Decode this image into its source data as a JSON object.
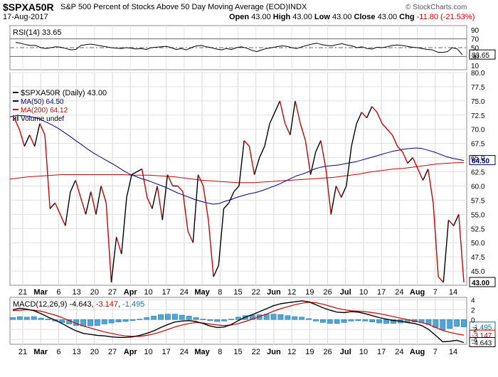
{
  "header": {
    "symbol": "$SPXA50R",
    "description": "S&P 500 Percent of Stocks Above 50 Day Moving Average (EOD)",
    "exchange": "INDX",
    "watermark": "© StockCharts.com",
    "date": "17-Aug-2017",
    "open_label": "Open",
    "open": "43.00",
    "high_label": "High",
    "high": "43.00",
    "low_label": "Low",
    "low": "43.00",
    "close_label": "Close",
    "close": "43.00",
    "chg_label": "Chg",
    "chg": "-11.80 (-21.53%)",
    "chg_color": "#cc0000"
  },
  "chart_data": [
    {
      "type": "line",
      "panel": "rsi",
      "label": "RSI(14)",
      "current": "33.65",
      "ylim": [
        0,
        100
      ],
      "yticks": [
        "90",
        "70",
        "50",
        "30",
        "10"
      ],
      "guide_levels": [
        70,
        50,
        30
      ],
      "values": [
        62,
        60,
        57,
        55,
        55,
        50,
        48,
        50,
        52,
        51,
        48,
        45,
        46,
        55,
        57,
        58,
        56,
        54,
        52,
        50,
        49,
        48,
        50,
        49,
        47,
        48,
        46,
        50,
        51,
        52,
        53,
        50,
        46,
        48,
        45,
        50,
        54,
        55,
        52,
        50,
        47,
        45,
        48,
        46,
        50,
        52,
        49,
        44,
        41,
        45,
        48,
        50,
        52,
        54,
        53,
        50,
        48,
        52,
        55,
        58,
        60,
        57,
        55,
        54,
        57,
        59,
        56,
        54,
        50,
        52,
        48,
        47,
        51,
        50,
        52,
        55,
        56,
        55,
        53,
        51,
        50,
        48,
        46,
        45,
        40,
        39,
        41,
        50,
        47,
        33.65
      ]
    },
    {
      "type": "line",
      "panel": "price",
      "title": "$SPXA50R (Daily)",
      "current": "43.00",
      "ylim": [
        42.5,
        80
      ],
      "yticks": [
        "80.0",
        "77.5",
        "75.0",
        "72.5",
        "70.0",
        "67.5",
        "65.0",
        "62.5",
        "60.0",
        "57.5",
        "55.0",
        "52.5",
        "50.0",
        "47.5",
        "45.0"
      ],
      "x_ticks": [
        "21",
        "Mar",
        "6",
        "13",
        "20",
        "27",
        "Apr",
        "10",
        "17",
        "24",
        "May",
        "8",
        "15",
        "22",
        "Jun",
        "12",
        "19",
        "26",
        "Jul",
        "10",
        "17",
        "24",
        "Aug",
        "7",
        "14"
      ],
      "series": [
        {
          "name": "$SPXA50R (Daily)",
          "value_label": "43.00",
          "color": "#000000",
          "values": [
            72,
            70,
            67,
            69,
            67,
            71,
            69,
            56,
            57,
            55,
            53,
            59,
            61,
            58,
            55,
            59,
            55,
            60,
            57,
            43,
            51,
            48,
            58,
            62,
            62.5,
            63,
            58,
            56,
            60,
            54,
            62,
            60,
            60,
            59,
            52,
            50,
            62,
            60,
            54,
            44,
            46,
            56,
            57,
            59,
            60,
            68,
            67,
            62,
            65,
            67,
            71,
            73,
            75,
            71,
            69,
            75,
            71,
            68,
            62,
            66,
            68,
            63,
            55,
            60,
            58,
            60,
            67,
            71,
            73,
            72,
            74,
            73,
            71,
            70,
            69,
            67,
            66,
            64,
            65,
            63,
            61,
            63,
            57,
            44,
            43,
            54,
            53,
            55,
            43
          ]
        },
        {
          "name": "MA(50)",
          "value_label": "64.50",
          "color": "#000080",
          "values": [
            72.2,
            72.4,
            72.4,
            72.3,
            72.1,
            71.8,
            71.3,
            70.8,
            70.2,
            69.5,
            68.8,
            68.0,
            67.3,
            66.5,
            65.8,
            65.2,
            64.6,
            64.0,
            63.4,
            62.7,
            62.1,
            61.7,
            61.3,
            61.0,
            60.6,
            60.2,
            59.8,
            59.3,
            58.8,
            58.4,
            58.0,
            57.6,
            57.3,
            57.0,
            56.8,
            56.9,
            57.3,
            57.6,
            58.0,
            58.3,
            58.6,
            58.8,
            59.1,
            59.5,
            59.9,
            60.3,
            60.8,
            61.3,
            61.8,
            62.1,
            62.5,
            63.0,
            63.3,
            63.5,
            63.6,
            63.7,
            63.9,
            64.1,
            64.3,
            64.6,
            64.9,
            65.2,
            65.5,
            65.8,
            66.1,
            66.3,
            66.5,
            66.6,
            66.7,
            66.6,
            66.3,
            66.0,
            65.6,
            65.2,
            64.9,
            64.7,
            64.5
          ]
        },
        {
          "name": "MA(200)",
          "value_label": "64.12",
          "color": "#cc0000",
          "values": [
            61.2,
            61.4,
            61.6,
            61.7,
            61.8,
            61.9,
            62.0,
            62.0,
            62.0,
            62.0,
            62.0,
            62.0,
            62.0,
            62.0,
            61.9,
            61.9,
            61.9,
            61.8,
            61.7,
            61.6,
            61.4,
            61.2,
            61.0,
            60.9,
            60.8,
            60.7,
            60.6,
            60.6,
            60.6,
            60.7,
            60.8,
            60.9,
            61.0,
            61.1,
            61.2,
            61.3,
            61.4,
            61.5,
            61.7,
            61.9,
            62.1,
            62.4,
            62.6,
            62.8,
            63.0,
            63.1,
            63.3,
            63.5,
            63.7,
            63.9,
            64.0,
            64.1,
            64.12
          ]
        },
        {
          "name": "Volume undef",
          "value_label": "",
          "color": "#555555",
          "values": []
        }
      ]
    },
    {
      "type": "line",
      "panel": "macd",
      "label": "MACD(12,26,9)",
      "macd_label": "-4.643",
      "signal_label": "-3.147",
      "hist_label": "-1.495",
      "ylim": [
        -5,
        4.5
      ],
      "yticks": [
        "4",
        "2",
        "0",
        "-2",
        "-4"
      ],
      "series": [
        {
          "name": "MACD",
          "value_label": "-4.643",
          "color": "#000000",
          "values": [
            2.0,
            2.3,
            2.1,
            1.8,
            1.2,
            0.5,
            -0.1,
            -0.8,
            -1.6,
            -2.3,
            -2.8,
            -3.0,
            -3.2,
            -3.3,
            -3.5,
            -3.6,
            -3.6,
            -3.5,
            -3.2,
            -2.8,
            -2.3,
            -1.6,
            -1.0,
            -0.5,
            -0.3,
            -0.2,
            -0.4,
            -0.8,
            -1.3,
            -1.6,
            -1.5,
            -1.0,
            -0.2,
            0.5,
            1.0,
            1.6,
            2.2,
            2.8,
            3.2,
            3.4,
            3.6,
            3.8,
            3.6,
            3.0,
            2.4,
            1.9,
            1.5,
            1.4,
            1.6,
            1.5,
            1.2,
            0.8,
            0.4,
            0.1,
            -0.2,
            -0.3,
            -0.6,
            -0.8,
            -1.2,
            -2.0,
            -3.2,
            -4.5,
            -4.4,
            -4.2,
            -4.643
          ]
        },
        {
          "name": "Signal",
          "value_label": "-3.147",
          "color": "#cc0000",
          "values": [
            1.8,
            1.9,
            2.0,
            1.9,
            1.7,
            1.3,
            0.9,
            0.4,
            -0.2,
            -0.8,
            -1.3,
            -1.7,
            -2.1,
            -2.5,
            -2.8,
            -3.1,
            -3.3,
            -3.4,
            -3.4,
            -3.2,
            -2.9,
            -2.5,
            -2.0,
            -1.5,
            -1.1,
            -0.8,
            -0.6,
            -0.7,
            -0.9,
            -1.1,
            -1.2,
            -1.1,
            -0.8,
            -0.4,
            0.1,
            0.6,
            1.1,
            1.7,
            2.2,
            2.6,
            3.0,
            3.3,
            3.5,
            3.4,
            3.1,
            2.7,
            2.3,
            2.0,
            1.8,
            1.7,
            1.6,
            1.4,
            1.2,
            0.9,
            0.6,
            0.3,
            0.0,
            -0.3,
            -0.6,
            -1.0,
            -1.6,
            -2.2,
            -2.6,
            -2.9,
            -3.147
          ]
        },
        {
          "name": "Histogram",
          "value_label": "-1.495",
          "color": "#3399cc",
          "values": [
            0.4,
            0.6,
            0.5,
            0.6,
            0.3,
            0.1,
            -0.3,
            -0.6,
            -0.9,
            -1.2,
            -1.3,
            -1.3,
            -1.2,
            -0.9,
            -0.7,
            -0.5,
            -0.4,
            -0.2,
            0.1,
            0.4,
            0.7,
            1.0,
            1.1,
            1.1,
            0.9,
            0.7,
            0.4,
            0.1,
            -0.2,
            -0.4,
            -0.3,
            0.1,
            0.5,
            0.8,
            0.9,
            1.0,
            1.1,
            1.1,
            1.0,
            0.8,
            0.6,
            0.5,
            0.2,
            -0.3,
            -0.6,
            -0.8,
            -0.8,
            -0.6,
            -0.3,
            -0.2,
            -0.3,
            -0.5,
            -0.7,
            -0.8,
            -0.8,
            -0.7,
            -0.6,
            -0.5,
            -0.6,
            -1.0,
            -1.6,
            -2.1,
            -1.8,
            -1.4,
            -1.495
          ]
        }
      ]
    }
  ]
}
